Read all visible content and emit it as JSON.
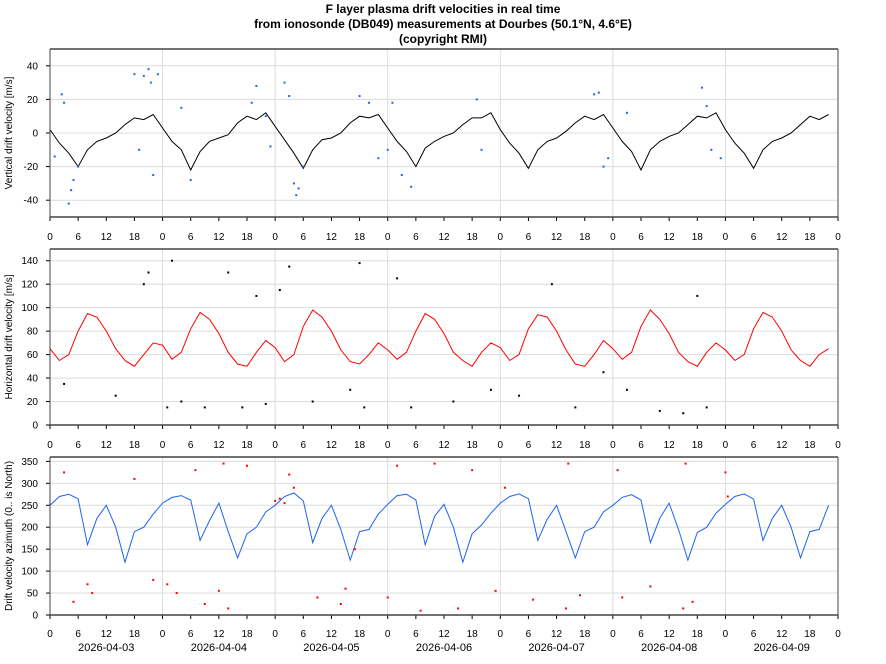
{
  "title_lines": [
    "F layer plasma drift velocities in real time",
    "from ionosonde (DB049) measurements at Dourbes (50.1°N, 4.6°E)",
    "(copyright RMI)"
  ],
  "chart_data": [
    {
      "type": "line",
      "ylabel": "Vertical drift velocity [m/s]",
      "ylim": [
        -50,
        50
      ],
      "yticks": [
        -40,
        -20,
        0,
        20,
        40
      ],
      "xlim": [
        "2026-04-03T00:00",
        "2026-04-10T00:00"
      ],
      "xtick_hours": [
        "0",
        "6",
        "12",
        "18"
      ],
      "grid": true,
      "line_color": "#000000",
      "scatter_color": "#1e64f0",
      "days": [
        "2026-04-03",
        "2026-04-04",
        "2026-04-05",
        "2026-04-06",
        "2026-04-07",
        "2026-04-08",
        "2026-04-09"
      ],
      "hours": [
        0,
        2,
        4,
        6,
        8,
        10,
        12,
        14,
        16,
        18,
        20,
        22
      ],
      "line_values": [
        [
          2,
          -6,
          -12,
          -20,
          -10,
          -5,
          -3,
          0,
          5,
          9,
          8,
          11
        ],
        [
          3,
          -5,
          -10,
          -22,
          -11,
          -5,
          -3,
          -1,
          6,
          10,
          8,
          12
        ],
        [
          4,
          -4,
          -12,
          -21,
          -10,
          -4,
          -3,
          0,
          6,
          10,
          9,
          11
        ],
        [
          3,
          -5,
          -11,
          -20,
          -9,
          -5,
          -2,
          0,
          5,
          9,
          9,
          12
        ],
        [
          2,
          -6,
          -12,
          -21,
          -10,
          -5,
          -3,
          1,
          6,
          10,
          8,
          11
        ],
        [
          3,
          -5,
          -11,
          -22,
          -10,
          -5,
          -2,
          0,
          5,
          10,
          9,
          12
        ],
        [
          2,
          -6,
          -12,
          -21,
          -10,
          -5,
          -3,
          0,
          5,
          10,
          8,
          11
        ]
      ],
      "scatter": [
        [
          "2026-04-03T01:00",
          -14
        ],
        [
          "2026-04-03T02:30",
          23
        ],
        [
          "2026-04-03T03:00",
          18
        ],
        [
          "2026-04-03T04:00",
          -42
        ],
        [
          "2026-04-03T04:30",
          -34
        ],
        [
          "2026-04-03T05:00",
          -28
        ],
        [
          "2026-04-03T06:00",
          -20
        ],
        [
          "2026-04-03T18:00",
          35
        ],
        [
          "2026-04-03T19:00",
          -10
        ],
        [
          "2026-04-03T20:00",
          34
        ],
        [
          "2026-04-03T21:00",
          38
        ],
        [
          "2026-04-03T21:30",
          30
        ],
        [
          "2026-04-03T22:00",
          -25
        ],
        [
          "2026-04-03T23:00",
          35
        ],
        [
          "2026-04-04T04:00",
          15
        ],
        [
          "2026-04-04T06:00",
          -28
        ],
        [
          "2026-04-04T19:00",
          18
        ],
        [
          "2026-04-04T20:00",
          28
        ],
        [
          "2026-04-04T22:00",
          10
        ],
        [
          "2026-04-04T23:00",
          -8
        ],
        [
          "2026-04-05T02:00",
          30
        ],
        [
          "2026-04-05T03:00",
          22
        ],
        [
          "2026-04-05T04:00",
          -30
        ],
        [
          "2026-04-05T04:30",
          -37
        ],
        [
          "2026-04-05T05:00",
          -33
        ],
        [
          "2026-04-05T06:00",
          -20
        ],
        [
          "2026-04-05T18:00",
          22
        ],
        [
          "2026-04-05T20:00",
          18
        ],
        [
          "2026-04-05T22:00",
          -15
        ],
        [
          "2026-04-06T00:00",
          -10
        ],
        [
          "2026-04-06T01:00",
          18
        ],
        [
          "2026-04-06T03:00",
          -25
        ],
        [
          "2026-04-06T05:00",
          -32
        ],
        [
          "2026-04-06T19:00",
          20
        ],
        [
          "2026-04-06T20:00",
          -10
        ],
        [
          "2026-04-07T20:00",
          23
        ],
        [
          "2026-04-07T21:00",
          24
        ],
        [
          "2026-04-07T22:00",
          -20
        ],
        [
          "2026-04-07T23:00",
          -15
        ],
        [
          "2026-04-08T03:00",
          12
        ],
        [
          "2026-04-08T19:00",
          27
        ],
        [
          "2026-04-08T20:00",
          16
        ],
        [
          "2026-04-08T21:00",
          -10
        ],
        [
          "2026-04-08T23:00",
          -15
        ]
      ]
    },
    {
      "type": "line",
      "ylabel": "Horizontal drift velocity [m/s]",
      "ylim": [
        0,
        150
      ],
      "yticks": [
        0,
        20,
        40,
        60,
        80,
        100,
        120,
        140
      ],
      "xlim": [
        "2026-04-03T00:00",
        "2026-04-10T00:00"
      ],
      "xtick_hours": [
        "0",
        "6",
        "12",
        "18"
      ],
      "grid": true,
      "line_color": "#ff0000",
      "scatter_color": "#000000",
      "days": [
        "2026-04-03",
        "2026-04-04",
        "2026-04-05",
        "2026-04-06",
        "2026-04-07",
        "2026-04-08",
        "2026-04-09"
      ],
      "hours": [
        0,
        2,
        4,
        6,
        8,
        10,
        12,
        14,
        16,
        18,
        20,
        22
      ],
      "line_values": [
        [
          65,
          55,
          60,
          80,
          95,
          92,
          80,
          65,
          55,
          50,
          60,
          70
        ],
        [
          68,
          56,
          62,
          82,
          96,
          90,
          78,
          62,
          52,
          50,
          62,
          72
        ],
        [
          66,
          54,
          60,
          84,
          98,
          92,
          80,
          64,
          54,
          52,
          60,
          70
        ],
        [
          64,
          56,
          62,
          80,
          95,
          90,
          78,
          62,
          55,
          50,
          62,
          70
        ],
        [
          66,
          55,
          60,
          82,
          94,
          92,
          80,
          64,
          52,
          50,
          60,
          72
        ],
        [
          65,
          56,
          62,
          84,
          98,
          90,
          78,
          62,
          54,
          50,
          62,
          70
        ],
        [
          64,
          55,
          60,
          82,
          96,
          92,
          80,
          64,
          55,
          50,
          60,
          65
        ]
      ],
      "scatter": [
        [
          "2026-04-03T03:00",
          35
        ],
        [
          "2026-04-03T14:00",
          25
        ],
        [
          "2026-04-03T20:00",
          120
        ],
        [
          "2026-04-03T21:00",
          130
        ],
        [
          "2026-04-04T01:00",
          15
        ],
        [
          "2026-04-04T02:00",
          140
        ],
        [
          "2026-04-04T04:00",
          20
        ],
        [
          "2026-04-04T09:00",
          15
        ],
        [
          "2026-04-04T14:00",
          130
        ],
        [
          "2026-04-04T17:00",
          15
        ],
        [
          "2026-04-04T20:00",
          110
        ],
        [
          "2026-04-04T22:00",
          18
        ],
        [
          "2026-04-05T01:00",
          115
        ],
        [
          "2026-04-05T03:00",
          135
        ],
        [
          "2026-04-05T08:00",
          20
        ],
        [
          "2026-04-05T16:00",
          30
        ],
        [
          "2026-04-05T18:00",
          138
        ],
        [
          "2026-04-05T19:00",
          15
        ],
        [
          "2026-04-06T02:00",
          125
        ],
        [
          "2026-04-06T05:00",
          15
        ],
        [
          "2026-04-06T14:00",
          20
        ],
        [
          "2026-04-06T22:00",
          30
        ],
        [
          "2026-04-07T04:00",
          25
        ],
        [
          "2026-04-07T11:00",
          120
        ],
        [
          "2026-04-07T16:00",
          15
        ],
        [
          "2026-04-07T22:00",
          45
        ],
        [
          "2026-04-08T03:00",
          30
        ],
        [
          "2026-04-08T10:00",
          12
        ],
        [
          "2026-04-08T15:00",
          10
        ],
        [
          "2026-04-08T18:00",
          110
        ],
        [
          "2026-04-08T20:00",
          15
        ]
      ]
    },
    {
      "type": "line",
      "ylabel": "Drift velocity azimuth (0.. is North)",
      "ylim": [
        0,
        360
      ],
      "yticks": [
        0,
        50,
        100,
        150,
        200,
        250,
        300,
        350
      ],
      "xlim": [
        "2026-04-03T00:00",
        "2026-04-10T00:00"
      ],
      "xtick_hours": [
        "0",
        "6",
        "12",
        "18"
      ],
      "date_labels": [
        "2026-04-03",
        "2026-04-04",
        "2026-04-05",
        "2026-04-06",
        "2026-04-07",
        "2026-04-08",
        "2026-04-09"
      ],
      "grid": true,
      "line_color": "#1e64f0",
      "scatter_color": "#ff0000",
      "days": [
        "2026-04-03",
        "2026-04-04",
        "2026-04-05",
        "2026-04-06",
        "2026-04-07",
        "2026-04-08",
        "2026-04-09"
      ],
      "hours": [
        0,
        2,
        4,
        6,
        8,
        10,
        12,
        14,
        16,
        18,
        20,
        22
      ],
      "line_values": [
        [
          250,
          270,
          275,
          265,
          160,
          220,
          250,
          200,
          120,
          190,
          200,
          230
        ],
        [
          255,
          268,
          272,
          262,
          170,
          215,
          255,
          190,
          130,
          185,
          200,
          235
        ],
        [
          250,
          270,
          278,
          260,
          165,
          220,
          250,
          195,
          125,
          190,
          195,
          230
        ],
        [
          252,
          272,
          275,
          262,
          160,
          225,
          252,
          200,
          120,
          185,
          205,
          232
        ],
        [
          255,
          270,
          276,
          265,
          170,
          218,
          250,
          190,
          130,
          190,
          200,
          235
        ],
        [
          250,
          268,
          274,
          262,
          165,
          220,
          255,
          195,
          125,
          188,
          200,
          232
        ],
        [
          252,
          270,
          276,
          264,
          170,
          220,
          250,
          200,
          130,
          190,
          195,
          250
        ]
      ],
      "scatter": [
        [
          "2026-04-03T03:00",
          325
        ],
        [
          "2026-04-03T05:00",
          30
        ],
        [
          "2026-04-03T08:00",
          70
        ],
        [
          "2026-04-03T09:00",
          50
        ],
        [
          "2026-04-03T18:00",
          310
        ],
        [
          "2026-04-03T22:00",
          80
        ],
        [
          "2026-04-04T01:00",
          70
        ],
        [
          "2026-04-04T03:00",
          50
        ],
        [
          "2026-04-04T07:00",
          330
        ],
        [
          "2026-04-04T09:00",
          25
        ],
        [
          "2026-04-04T12:00",
          55
        ],
        [
          "2026-04-04T13:00",
          345
        ],
        [
          "2026-04-04T14:00",
          15
        ],
        [
          "2026-04-04T18:00",
          340
        ],
        [
          "2026-04-05T00:00",
          260
        ],
        [
          "2026-04-05T01:00",
          265
        ],
        [
          "2026-04-05T02:00",
          255
        ],
        [
          "2026-04-05T03:00",
          320
        ],
        [
          "2026-04-05T04:00",
          290
        ],
        [
          "2026-04-05T09:00",
          40
        ],
        [
          "2026-04-05T14:00",
          25
        ],
        [
          "2026-04-05T15:00",
          60
        ],
        [
          "2026-04-05T17:00",
          150
        ],
        [
          "2026-04-06T00:00",
          40
        ],
        [
          "2026-04-06T02:00",
          340
        ],
        [
          "2026-04-06T07:00",
          10
        ],
        [
          "2026-04-06T10:00",
          345
        ],
        [
          "2026-04-06T15:00",
          15
        ],
        [
          "2026-04-06T18:00",
          330
        ],
        [
          "2026-04-06T23:00",
          55
        ],
        [
          "2026-04-07T01:00",
          290
        ],
        [
          "2026-04-07T07:00",
          35
        ],
        [
          "2026-04-07T14:00",
          15
        ],
        [
          "2026-04-07T14:30",
          345
        ],
        [
          "2026-04-07T17:00",
          45
        ],
        [
          "2026-04-08T01:00",
          330
        ],
        [
          "2026-04-08T02:00",
          40
        ],
        [
          "2026-04-08T08:00",
          65
        ],
        [
          "2026-04-08T15:00",
          15
        ],
        [
          "2026-04-08T15:30",
          345
        ],
        [
          "2026-04-08T17:00",
          30
        ],
        [
          "2026-04-09T00:00",
          325
        ],
        [
          "2026-04-09T00:30",
          270
        ]
      ]
    }
  ]
}
